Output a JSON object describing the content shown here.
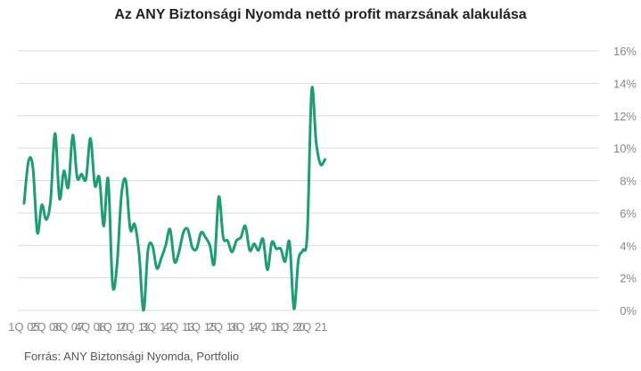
{
  "chart_data": {
    "type": "line",
    "title": "Az ANY Biztonsági Nyomda nettó profit marzsának alakulása",
    "source": "Forrás: ANY Biztonsági Nyomda, Portfolio",
    "xlabel": "",
    "ylabel": "",
    "ylim": [
      0,
      16
    ],
    "y_ticks": [
      "0%",
      "2%",
      "4%",
      "6%",
      "8%",
      "10%",
      "12%",
      "14%",
      "16%"
    ],
    "x_ticks": [
      "1Q 05",
      "2Q 06",
      "3Q 07",
      "4Q 08",
      "1Q 10",
      "2Q 11",
      "3Q 12",
      "4Q 13",
      "1Q 15",
      "2Q 16",
      "3Q 17",
      "4Q 18",
      "1Q 20",
      "2Q 21"
    ],
    "grid": true,
    "line_color": "#1a9e72",
    "x": [
      "1Q 05",
      "2Q 05",
      "3Q 05",
      "4Q 05",
      "1Q 06",
      "2Q 06",
      "3Q 06",
      "4Q 06",
      "1Q 07",
      "2Q 07",
      "3Q 07",
      "4Q 07",
      "1Q 08",
      "2Q 08",
      "3Q 08",
      "4Q 08",
      "1Q 09",
      "2Q 09",
      "3Q 09",
      "4Q 09",
      "1Q 10",
      "2Q 10",
      "3Q 10",
      "4Q 10",
      "1Q 11",
      "2Q 11",
      "3Q 11",
      "4Q 11",
      "1Q 12",
      "2Q 12",
      "3Q 12",
      "4Q 12",
      "1Q 13",
      "2Q 13",
      "3Q 13",
      "4Q 13",
      "1Q 14",
      "2Q 14",
      "3Q 14",
      "4Q 14",
      "1Q 15",
      "2Q 15",
      "3Q 15",
      "4Q 15",
      "1Q 16",
      "2Q 16",
      "3Q 16",
      "4Q 16",
      "1Q 17",
      "2Q 17",
      "3Q 17",
      "4Q 17",
      "1Q 18",
      "2Q 18",
      "3Q 18",
      "4Q 18",
      "1Q 19",
      "2Q 19",
      "3Q 19",
      "4Q 19",
      "1Q 20",
      "2Q 20",
      "3Q 20",
      "4Q 20",
      "1Q 21",
      "2Q 21",
      "3Q 21",
      "4Q 21",
      "1Q 22"
    ],
    "series": [
      {
        "values": [
          6.6,
          9.2,
          8.8,
          4.8,
          6.5,
          5.6,
          6.8,
          10.9,
          6.9,
          8.6,
          7.6,
          10.8,
          8.2,
          8.4,
          8.1,
          10.6,
          7.7,
          8.2,
          5.2,
          8.1,
          1.6,
          2.8,
          7.1,
          8.0,
          5.0,
          5.3,
          3.5,
          0.0,
          3.7,
          4.0,
          2.6,
          3.2,
          4.0,
          5.0,
          3.0,
          3.6,
          4.8,
          5.0,
          3.9,
          3.8,
          4.8,
          4.5,
          4.0,
          2.9,
          7.0,
          4.5,
          4.3,
          3.6,
          4.3,
          4.5,
          5.2,
          3.7,
          4.1,
          3.7,
          4.4,
          2.5,
          4.2,
          3.8,
          3.8,
          3.0,
          4.2,
          0.1,
          3.1,
          3.7,
          4.7,
          13.6,
          10.4,
          9.0,
          9.3
        ]
      }
    ]
  }
}
